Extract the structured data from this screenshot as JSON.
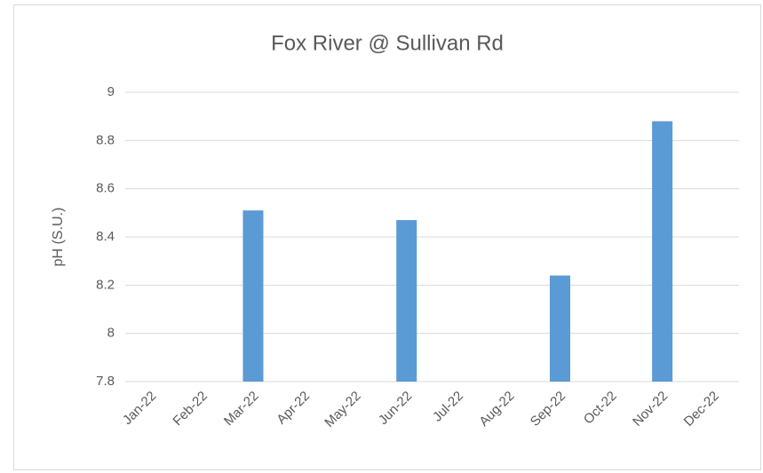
{
  "chart_data": {
    "type": "bar",
    "title": "Fox River @ Sullivan Rd",
    "y_label": "pH (S.U.)",
    "categories": [
      "Jan-22",
      "Feb-22",
      "Mar-22",
      "Apr-22",
      "May-22",
      "Jun-22",
      "Jul-22",
      "Aug-22",
      "Sep-22",
      "Oct-22",
      "Nov-22",
      "Dec-22"
    ],
    "values": [
      null,
      null,
      8.51,
      null,
      null,
      8.47,
      null,
      null,
      8.24,
      null,
      8.88,
      null
    ],
    "color": "#5b9bd5",
    "ylim": [
      7.8,
      9
    ],
    "yticks": [
      7.8,
      8,
      8.2,
      8.4,
      8.6,
      8.8,
      9
    ],
    "grid": true
  }
}
